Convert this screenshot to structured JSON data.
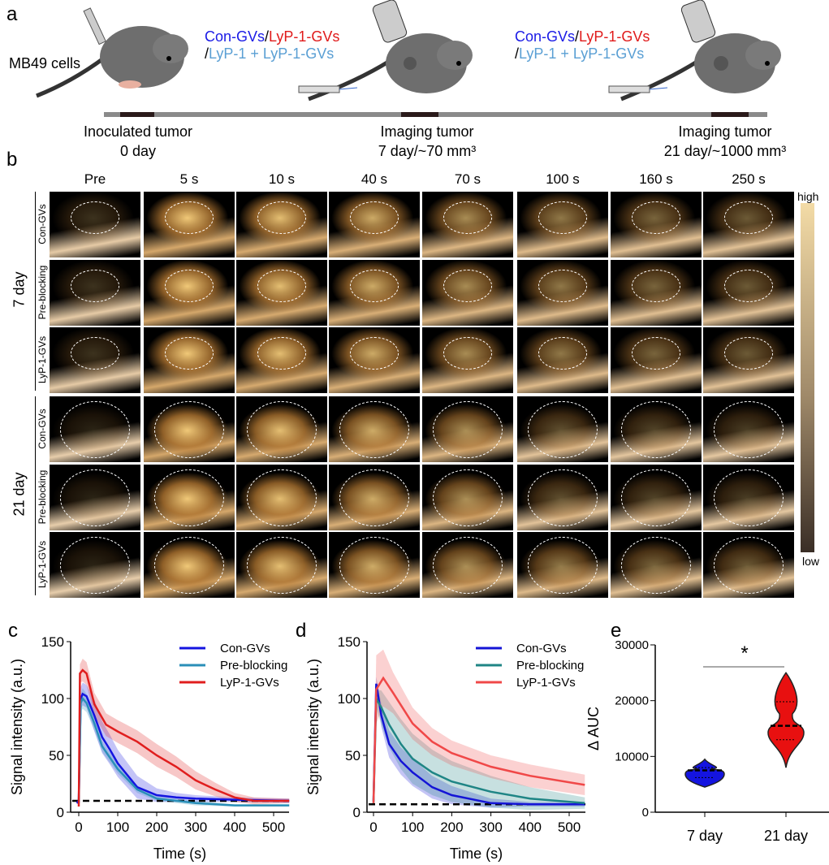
{
  "panel_a": {
    "label": "a",
    "cells_label": "MB49 cells",
    "agents_line1": [
      {
        "text": "Con-GVs",
        "color": "#1a1ae6"
      },
      {
        "text": "/",
        "color": "#000000"
      },
      {
        "text": "LyP-1-GVs",
        "color": "#e01a1a"
      }
    ],
    "agents_line2": [
      {
        "text": "/",
        "color": "#000000"
      },
      {
        "text": "LyP-1 + LyP-1-GVs",
        "color": "#5a9fd4"
      }
    ],
    "timeline": [
      {
        "title": "Inoculated tumor",
        "sub": "0 day"
      },
      {
        "title": "Imaging tumor",
        "sub": "7 day/~70 mm³"
      },
      {
        "title": "Imaging tumor",
        "sub": "21 day/~1000 mm³"
      }
    ]
  },
  "panel_b": {
    "label": "b",
    "columns": [
      "Pre",
      "5 s",
      "10 s",
      "40 s",
      "70 s",
      "100 s",
      "160 s",
      "250 s"
    ],
    "groups": [
      {
        "label": "7 day",
        "rows": [
          "Con-GVs",
          "Pre-blocking",
          "LyP-1-GVs"
        ]
      },
      {
        "label": "21 day",
        "rows": [
          "Con-GVs",
          "Pre-blocking",
          "LyP-1-GVs"
        ]
      }
    ],
    "colorbar": {
      "high": "high",
      "low": "low",
      "top_color": "#f3dba6",
      "bottom_color": "#3a2e26"
    }
  },
  "chart_data": [
    {
      "panel": "c",
      "type": "line",
      "xlabel": "Time (s)",
      "ylabel": "Signal  intensity (a.u.)",
      "xlim": [
        -15,
        540
      ],
      "ylim": [
        0,
        150
      ],
      "xticks": [
        0,
        100,
        200,
        300,
        400,
        500
      ],
      "yticks": [
        0,
        50,
        100,
        150
      ],
      "legend_position": "top-right",
      "baseline": 10,
      "series": [
        {
          "name": "Con-GVs",
          "color": "#1414e0",
          "points": [
            [
              -5,
              8
            ],
            [
              0,
              10
            ],
            [
              5,
              100
            ],
            [
              10,
              104
            ],
            [
              20,
              102
            ],
            [
              40,
              85
            ],
            [
              60,
              66
            ],
            [
              80,
              55
            ],
            [
              100,
              43
            ],
            [
              150,
              22
            ],
            [
              200,
              15
            ],
            [
              250,
              13
            ],
            [
              300,
              12
            ],
            [
              400,
              11
            ],
            [
              540,
              10
            ]
          ],
          "sd": [
            1,
            2,
            10,
            10,
            10,
            14,
            14,
            13,
            12,
            10,
            6,
            4,
            3,
            2,
            2
          ]
        },
        {
          "name": "Pre-blocking",
          "color": "#2a8fb8",
          "points": [
            [
              0,
              8
            ],
            [
              5,
              96
            ],
            [
              10,
              100
            ],
            [
              20,
              96
            ],
            [
              40,
              78
            ],
            [
              60,
              58
            ],
            [
              100,
              38
            ],
            [
              150,
              20
            ],
            [
              200,
              12
            ],
            [
              300,
              8
            ],
            [
              400,
              6
            ],
            [
              540,
              6
            ]
          ],
          "sd": [
            1,
            8,
            9,
            8,
            6,
            5,
            4,
            3,
            2,
            2,
            1,
            1
          ]
        },
        {
          "name": "LyP-1-GVs",
          "color": "#e01e1e",
          "points": [
            [
              0,
              5
            ],
            [
              3,
              122
            ],
            [
              10,
              125
            ],
            [
              20,
              122
            ],
            [
              40,
              95
            ],
            [
              70,
              77
            ],
            [
              100,
              71
            ],
            [
              150,
              62
            ],
            [
              200,
              50
            ],
            [
              250,
              40
            ],
            [
              300,
              28
            ],
            [
              350,
              20
            ],
            [
              400,
              13
            ],
            [
              450,
              10
            ],
            [
              540,
              10
            ]
          ],
          "sd": [
            1,
            8,
            10,
            10,
            10,
            10,
            10,
            10,
            10,
            9,
            8,
            6,
            4,
            3,
            2
          ]
        }
      ]
    },
    {
      "panel": "d",
      "type": "line",
      "xlabel": "Time (s)",
      "ylabel": "Signal  intensity (a.u.)",
      "xlim": [
        -15,
        540
      ],
      "ylim": [
        0,
        150
      ],
      "xticks": [
        0,
        100,
        200,
        300,
        400,
        500
      ],
      "yticks": [
        0,
        50,
        100,
        150
      ],
      "legend_position": "top-right",
      "baseline": 7,
      "series": [
        {
          "name": "Con-GVs",
          "color": "#1414d6",
          "points": [
            [
              0,
              10
            ],
            [
              7,
              113
            ],
            [
              20,
              85
            ],
            [
              40,
              60
            ],
            [
              70,
              45
            ],
            [
              100,
              35
            ],
            [
              150,
              22
            ],
            [
              200,
              15
            ],
            [
              300,
              8
            ],
            [
              400,
              7
            ],
            [
              540,
              7
            ]
          ],
          "sd": [
            1,
            6,
            10,
            12,
            12,
            12,
            10,
            8,
            4,
            2,
            2
          ]
        },
        {
          "name": "Pre-blocking",
          "color": "#1f8585",
          "points": [
            [
              0,
              8
            ],
            [
              7,
              100
            ],
            [
              20,
              92
            ],
            [
              40,
              77
            ],
            [
              70,
              60
            ],
            [
              100,
              47
            ],
            [
              150,
              35
            ],
            [
              200,
              27
            ],
            [
              300,
              18
            ],
            [
              400,
              12
            ],
            [
              540,
              8
            ]
          ],
          "sd": [
            1,
            8,
            15,
            20,
            22,
            22,
            20,
            18,
            14,
            10,
            5
          ]
        },
        {
          "name": "LyP-1-GVs",
          "color": "#f04848",
          "points": [
            [
              0,
              8
            ],
            [
              7,
              108
            ],
            [
              25,
              118
            ],
            [
              50,
              105
            ],
            [
              100,
              78
            ],
            [
              150,
              62
            ],
            [
              200,
              52
            ],
            [
              300,
              40
            ],
            [
              400,
              32
            ],
            [
              540,
              24
            ]
          ],
          "sd": [
            1,
            30,
            25,
            18,
            14,
            12,
            11,
            10,
            10,
            9
          ]
        }
      ]
    },
    {
      "panel": "e",
      "type": "violin",
      "ylabel": "Δ AUC",
      "ylim": [
        0,
        30000
      ],
      "yticks": [
        0,
        10000,
        20000,
        30000
      ],
      "categories": [
        "7 day",
        "21 day"
      ],
      "series": [
        {
          "name": "7 day",
          "color": "#1414e0",
          "min": 4500,
          "q1": 6200,
          "median": 7500,
          "q3": 8000,
          "max": 9500
        },
        {
          "name": "21 day",
          "color": "#e81010",
          "min": 8000,
          "q1": 13000,
          "median": 15500,
          "q3": 19800,
          "max": 25000
        }
      ],
      "significance": "*"
    }
  ]
}
